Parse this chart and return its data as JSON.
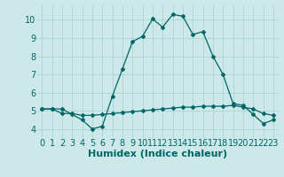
{
  "xlabel": "Humidex (Indice chaleur)",
  "bg_color": "#cce8e8",
  "line_color": "#006666",
  "xlim": [
    -0.5,
    23.5
  ],
  "ylim": [
    3.5,
    10.8
  ],
  "yticks": [
    4,
    5,
    6,
    7,
    8,
    9,
    10
  ],
  "xticks": [
    0,
    1,
    2,
    3,
    4,
    5,
    6,
    7,
    8,
    9,
    10,
    11,
    12,
    13,
    14,
    15,
    16,
    17,
    18,
    19,
    20,
    21,
    22,
    23
  ],
  "series1_x": [
    0,
    1,
    2,
    3,
    4,
    5,
    6,
    7,
    8,
    9,
    10,
    11,
    12,
    13,
    14,
    15,
    16,
    17,
    18,
    19,
    20,
    21,
    22,
    23
  ],
  "series1_y": [
    5.1,
    5.1,
    5.1,
    4.8,
    4.5,
    4.0,
    4.15,
    5.8,
    7.3,
    8.8,
    9.1,
    10.05,
    9.6,
    10.3,
    10.2,
    9.2,
    9.35,
    8.0,
    7.0,
    5.4,
    5.3,
    4.8,
    4.3,
    4.5
  ],
  "series2_x": [
    0,
    1,
    2,
    3,
    4,
    5,
    6,
    7,
    8,
    9,
    10,
    11,
    12,
    13,
    14,
    15,
    16,
    17,
    18,
    19,
    20,
    21,
    22,
    23
  ],
  "series2_y": [
    5.1,
    5.1,
    4.85,
    4.85,
    4.75,
    4.75,
    4.8,
    4.85,
    4.9,
    4.95,
    5.0,
    5.05,
    5.1,
    5.15,
    5.2,
    5.2,
    5.25,
    5.25,
    5.25,
    5.3,
    5.2,
    5.1,
    4.85,
    4.75
  ],
  "grid_color": "#aad4d4",
  "font_color": "#006666",
  "marker": "D",
  "markersize": 2.0,
  "linewidth": 0.9,
  "tick_fontsize": 7,
  "xlabel_fontsize": 8
}
